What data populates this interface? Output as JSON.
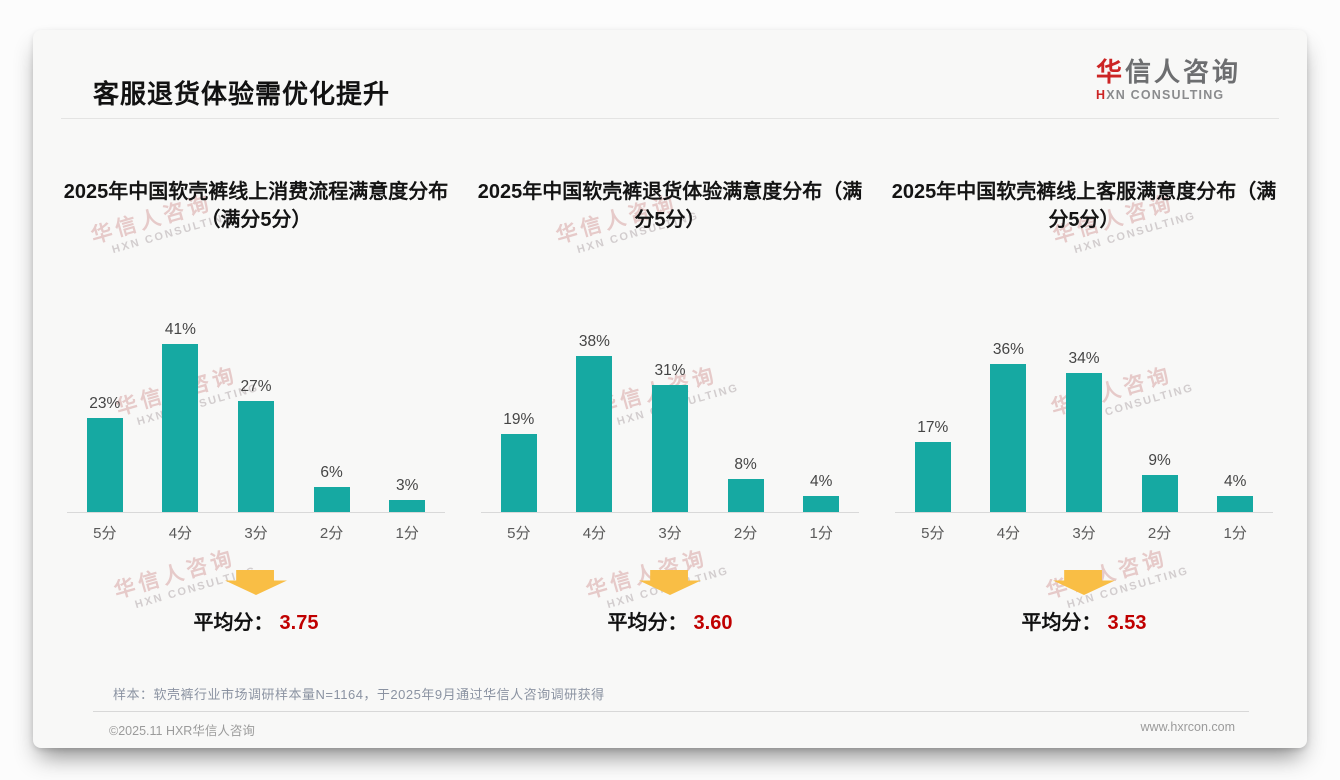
{
  "header": {
    "title": "客服退货体验需优化提升",
    "logo": {
      "zh_accent": "华",
      "zh_rest": "信人咨询",
      "en_accent": "H",
      "en_rest": "XN CONSULTING"
    }
  },
  "watermark": {
    "line1": "华信人咨询",
    "line2": "HXN CONSULTING"
  },
  "colors": {
    "bar_teal": "#16a9a2",
    "accent_red": "#c00000",
    "logo_red": "#cc2424",
    "arrow_yellow": "#f9be45"
  },
  "chart_data": [
    {
      "type": "bar",
      "title": "2025年中国软壳裤线上消费流程满意度分布（满分5分）",
      "categories": [
        "5分",
        "4分",
        "3分",
        "2分",
        "1分"
      ],
      "values": [
        23,
        41,
        27,
        6,
        3
      ],
      "value_labels": [
        "23%",
        "41%",
        "27%",
        "6%",
        "3%"
      ],
      "value_suffix": "%",
      "ylim": [
        0,
        45
      ],
      "grid": false,
      "average_label": "平均分：",
      "average": "3.75"
    },
    {
      "type": "bar",
      "title": "2025年中国软壳裤退货体验满意度分布（满分5分）",
      "categories": [
        "5分",
        "4分",
        "3分",
        "2分",
        "1分"
      ],
      "values": [
        19,
        38,
        31,
        8,
        4
      ],
      "value_labels": [
        "19%",
        "38%",
        "31%",
        "8%",
        "4%"
      ],
      "value_suffix": "%",
      "ylim": [
        0,
        45
      ],
      "grid": false,
      "average_label": "平均分：",
      "average": "3.60"
    },
    {
      "type": "bar",
      "title": "2025年中国软壳裤线上客服满意度分布（满分5分）",
      "categories": [
        "5分",
        "4分",
        "3分",
        "2分",
        "1分"
      ],
      "values": [
        17,
        36,
        34,
        9,
        4
      ],
      "value_labels": [
        "17%",
        "36%",
        "34%",
        "9%",
        "4%"
      ],
      "value_suffix": "%",
      "ylim": [
        0,
        45
      ],
      "grid": false,
      "average_label": "平均分：",
      "average": "3.53"
    }
  ],
  "footer": {
    "sample_note": "样本：软壳裤行业市场调研样本量N=1164，于2025年9月通过华信人咨询调研获得",
    "copyright": "©2025.11 HXR华信人咨询",
    "website": "www.hxrcon.com"
  }
}
